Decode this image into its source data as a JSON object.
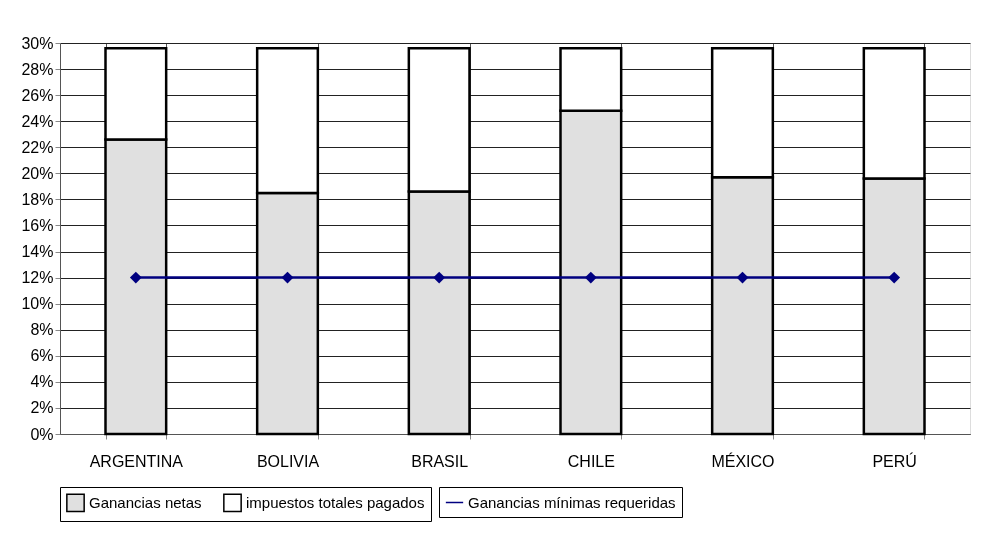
{
  "chart_data": {
    "type": "bar",
    "stacked": true,
    "categories": [
      "ARGENTINA",
      "BOLIVIA",
      "BRASIL",
      "CHILE",
      "MÉXICO",
      "PERÚ"
    ],
    "series": [
      {
        "name": "Ganancias netas",
        "color": "#e0e0e0",
        "values": [
          22.6,
          18.5,
          18.6,
          24.8,
          19.7,
          19.6
        ]
      },
      {
        "name": "impuestos totales pagados",
        "color": "#ffffff",
        "values": [
          7.0,
          11.1,
          11.0,
          4.8,
          9.9,
          10.0
        ]
      },
      {
        "name": "Ganancias mínimas requeridas",
        "color": "#000080",
        "type": "line",
        "marker": "diamond",
        "values": [
          12,
          12,
          12,
          12,
          12,
          12
        ]
      }
    ],
    "ylim": [
      0,
      30
    ],
    "yticks": [
      {
        "value": 0,
        "label": "0%"
      },
      {
        "value": 2,
        "label": "2%"
      },
      {
        "value": 4,
        "label": "4%"
      },
      {
        "value": 6,
        "label": "6%"
      },
      {
        "value": 8,
        "label": "8%"
      },
      {
        "value": 10,
        "label": "10%"
      },
      {
        "value": 12,
        "label": "12%"
      },
      {
        "value": 14,
        "label": "14%"
      },
      {
        "value": 16,
        "label": "16%"
      },
      {
        "value": 18,
        "label": "18%"
      },
      {
        "value": 20,
        "label": "20%"
      },
      {
        "value": 22,
        "label": "22%"
      },
      {
        "value": 24,
        "label": "24%"
      },
      {
        "value": 26,
        "label": "26%"
      },
      {
        "value": 28,
        "label": "28%"
      },
      {
        "value": 30,
        "label": "30%"
      }
    ],
    "grid": true,
    "legend": "bottom"
  }
}
